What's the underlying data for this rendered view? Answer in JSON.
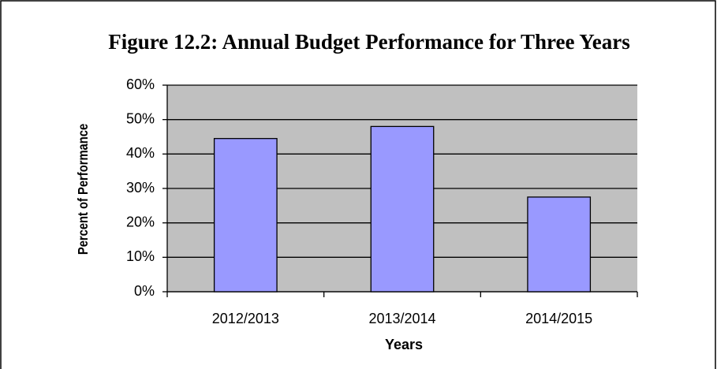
{
  "chart_data": {
    "type": "bar",
    "title": "Figure 12.2: Annual Budget Performance for Three Years",
    "x_label": "Years",
    "y_label": "Percent of Performance",
    "categories": [
      "2012/2013",
      "2013/2014",
      "2014/2015"
    ],
    "values": [
      44.5,
      48,
      27.5
    ],
    "color": "#9999ff",
    "ylim": [
      0,
      60
    ],
    "yticks": [
      {
        "value": 0,
        "label": "0%"
      },
      {
        "value": 10,
        "label": "10%"
      },
      {
        "value": 20,
        "label": "20%"
      },
      {
        "value": 30,
        "label": "30%"
      },
      {
        "value": 40,
        "label": "40%"
      },
      {
        "value": 50,
        "label": "50%"
      },
      {
        "value": 60,
        "label": "60%"
      }
    ],
    "grid": true
  }
}
